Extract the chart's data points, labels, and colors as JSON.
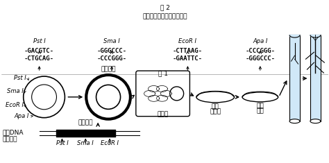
{
  "bg_color": "#ffffff",
  "fig1_label": "图 1",
  "fig2_label": "图 2",
  "dna_label1": "含抗病基",
  "dna_label2": "因的DNA",
  "disease_gene_label": "抗病基因",
  "recombinant_label": "重组质粒",
  "agro_label": "农杆菌",
  "banana_label1": "香蕉",
  "banana_label2": "组织块",
  "wound_label1": "愈伤",
  "wound_label2": "组织",
  "enzyme_labels": [
    "Pst I",
    "Sma I",
    "EcoR I"
  ],
  "plasmid_sites": [
    "Pst I",
    "Sma I",
    "EcoR I",
    "Apa I"
  ],
  "restriction_title": "限制酶识别序列及酶切位点",
  "seq1_top": "-CTGCAG-",
  "seq1_bot": "-GACGTC-",
  "seq1_name": "Pst I",
  "seq2_top": "-CCCGGG-",
  "seq2_bot": "-GGGCCC-",
  "seq2_name": "Sma I",
  "seq3_top": "-GAATTC-",
  "seq3_bot": "-CTTAAG-",
  "seq3_name": "EcoR I",
  "seq4_top": "-GGGCCC-",
  "seq4_bot": "-CCCGGG-",
  "seq4_name": "Apa I",
  "tube_color": "#d0e8f8"
}
